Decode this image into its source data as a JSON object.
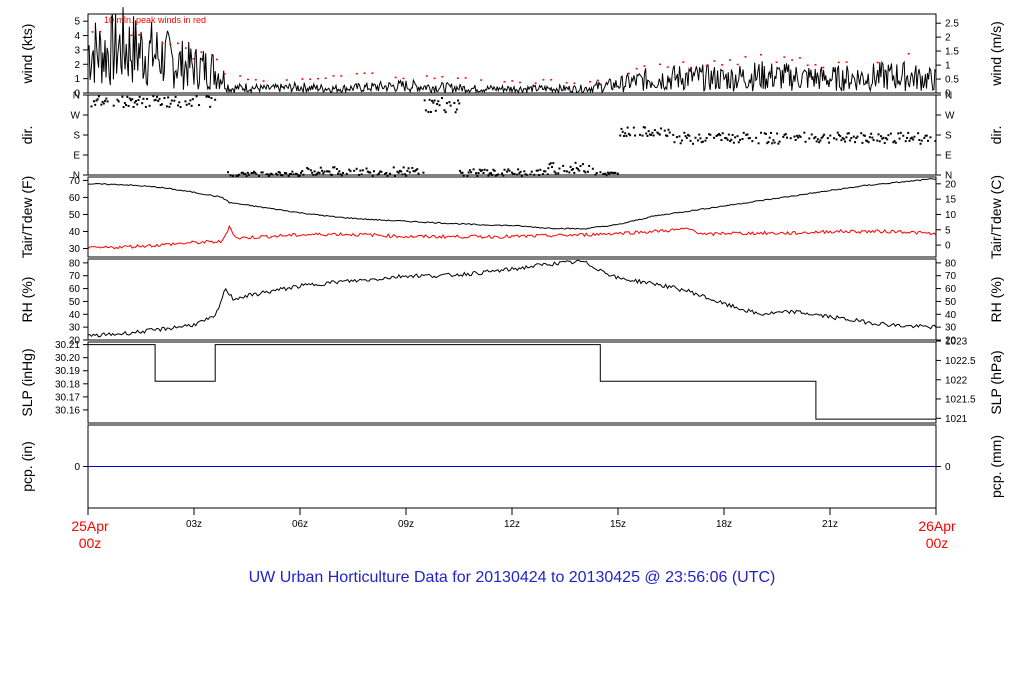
{
  "chart_title": "UW Urban Horticulture Data for 20130424  to  20130425 @ 23:56:06  (UTC)",
  "colors": {
    "black": "#000000",
    "red": "#ff0000",
    "blue": "#0000cc",
    "title": "#2222cc"
  },
  "time_axis": {
    "start_label": [
      "25Apr",
      "00z"
    ],
    "end_label": [
      "26Apr",
      "00z"
    ],
    "ticks": [
      {
        "hour": 3,
        "label": "03z"
      },
      {
        "hour": 6,
        "label": "06z"
      },
      {
        "hour": 9,
        "label": "09z"
      },
      {
        "hour": 12,
        "label": "12z"
      },
      {
        "hour": 15,
        "label": "15z"
      },
      {
        "hour": 18,
        "label": "18z"
      },
      {
        "hour": 21,
        "label": "21z"
      }
    ],
    "range_hours": [
      0,
      24
    ]
  },
  "chart_data": [
    {
      "type": "line",
      "id": "wind",
      "ylabel": "wind (kts)",
      "ylabel_right": "wind (m/s)",
      "annotation": "10 min. peak winds in red",
      "ylim": [
        0,
        5.5
      ],
      "left_ticks": [
        {
          "v": 0,
          "t": "0"
        },
        {
          "v": 1,
          "t": "1"
        },
        {
          "v": 2,
          "t": "2"
        },
        {
          "v": 3,
          "t": "3"
        },
        {
          "v": 4,
          "t": "4"
        },
        {
          "v": 5,
          "t": "5"
        }
      ],
      "right_ticks": [
        {
          "v": 0,
          "t": "0"
        },
        {
          "v": 0.97,
          "t": "0.5"
        },
        {
          "v": 1.94,
          "t": "1"
        },
        {
          "v": 2.92,
          "t": "1.5"
        },
        {
          "v": 3.89,
          "t": "2"
        },
        {
          "v": 4.86,
          "t": "2.5"
        }
      ],
      "series": [
        {
          "color": "#000000",
          "style": "line",
          "points": [
            [
              0,
              3.0
            ],
            [
              0.5,
              2.8
            ],
            [
              1,
              3.2
            ],
            [
              1.5,
              2.9
            ],
            [
              2,
              2.6
            ],
            [
              2.5,
              2.1
            ],
            [
              3,
              1.8
            ],
            [
              3.5,
              1.7
            ],
            [
              3.8,
              1.2
            ],
            [
              4,
              0.3
            ],
            [
              4.5,
              0.4
            ],
            [
              5,
              0.3
            ],
            [
              6,
              0.4
            ],
            [
              7,
              0.3
            ],
            [
              8,
              0.4
            ],
            [
              9,
              0.5
            ],
            [
              10,
              0.4
            ],
            [
              11,
              0.3
            ],
            [
              12,
              0.3
            ],
            [
              13,
              0.3
            ],
            [
              14,
              0.3
            ],
            [
              15,
              0.6
            ],
            [
              15.5,
              0.8
            ],
            [
              16,
              1.0
            ],
            [
              17,
              1.1
            ],
            [
              18,
              1.0
            ],
            [
              19,
              1.2
            ],
            [
              20,
              1.1
            ],
            [
              21,
              1.0
            ],
            [
              22,
              1.1
            ],
            [
              23,
              1.2
            ],
            [
              24,
              0.9
            ]
          ]
        },
        {
          "color": "#ff0000",
          "style": "dots",
          "points": [
            [
              0,
              4.5
            ],
            [
              0.5,
              4.3
            ],
            [
              1,
              4.8
            ],
            [
              1.5,
              4.2
            ],
            [
              2,
              3.6
            ],
            [
              2.5,
              3.2
            ],
            [
              3,
              2.6
            ],
            [
              3.5,
              2.4
            ],
            [
              4,
              1.2
            ],
            [
              5,
              1.0
            ],
            [
              6,
              1.2
            ],
            [
              7,
              1.1
            ],
            [
              8,
              1.3
            ],
            [
              9,
              1.2
            ],
            [
              10,
              1.1
            ],
            [
              11,
              0.9
            ],
            [
              12,
              0.8
            ],
            [
              13,
              0.9
            ],
            [
              14,
              0.8
            ],
            [
              15,
              1.4
            ],
            [
              16,
              1.8
            ],
            [
              17,
              2.0
            ],
            [
              18,
              2.2
            ],
            [
              19,
              2.5
            ],
            [
              20,
              2.3
            ],
            [
              21,
              2.1
            ],
            [
              22,
              2.2
            ],
            [
              23,
              2.6
            ],
            [
              24,
              1.8
            ]
          ]
        }
      ]
    },
    {
      "type": "scatter",
      "id": "dir",
      "ylabel": "dir.",
      "ylabel_right": "dir.",
      "ylim": [
        0,
        360
      ],
      "left_ticks": [
        {
          "v": 0,
          "t": "N"
        },
        {
          "v": 90,
          "t": "E"
        },
        {
          "v": 180,
          "t": "S"
        },
        {
          "v": 270,
          "t": "W"
        },
        {
          "v": 360,
          "t": "N"
        }
      ],
      "right_ticks": [
        {
          "v": 0,
          "t": "N"
        },
        {
          "v": 90,
          "t": "E"
        },
        {
          "v": 180,
          "t": "S"
        },
        {
          "v": 270,
          "t": "W"
        },
        {
          "v": 360,
          "t": "N"
        }
      ],
      "segments": [
        {
          "from": 0,
          "to": 3.6,
          "center": 335,
          "spread": 25
        },
        {
          "from": 3.9,
          "to": 6.0,
          "center": 10,
          "spread": 10
        },
        {
          "from": 6.0,
          "to": 9.5,
          "center": 20,
          "spread": 20
        },
        {
          "from": 9.5,
          "to": 10.5,
          "center": 320,
          "spread": 35
        },
        {
          "from": 10.5,
          "to": 13.0,
          "center": 15,
          "spread": 15
        },
        {
          "from": 13.0,
          "to": 14.3,
          "center": 35,
          "spread": 25
        },
        {
          "from": 14.3,
          "to": 15.0,
          "center": 10,
          "spread": 8
        },
        {
          "from": 15.0,
          "to": 16.5,
          "center": 200,
          "spread": 20
        },
        {
          "from": 16.5,
          "to": 24.0,
          "center": 170,
          "spread": 25
        }
      ]
    },
    {
      "type": "line",
      "id": "temp",
      "ylabel": "Tair/Tdew (F)",
      "ylabel_right": "Tair/Tdew (C)",
      "ylim": [
        25,
        72
      ],
      "left_ticks": [
        {
          "v": 30,
          "t": "30"
        },
        {
          "v": 40,
          "t": "40"
        },
        {
          "v": 50,
          "t": "50"
        },
        {
          "v": 60,
          "t": "60"
        },
        {
          "v": 70,
          "t": "70"
        }
      ],
      "right_ticks": [
        {
          "v": 32,
          "t": "0"
        },
        {
          "v": 41,
          "t": "5"
        },
        {
          "v": 50,
          "t": "10"
        },
        {
          "v": 59,
          "t": "15"
        },
        {
          "v": 68,
          "t": "20"
        }
      ],
      "series": [
        {
          "name": "Tair",
          "color": "#000000",
          "points": [
            [
              0,
              68
            ],
            [
              1,
              67.5
            ],
            [
              2,
              66
            ],
            [
              3,
              63
            ],
            [
              3.8,
              60
            ],
            [
              4,
              57
            ],
            [
              5,
              54
            ],
            [
              6,
              51
            ],
            [
              7,
              48.5
            ],
            [
              8,
              47
            ],
            [
              9,
              46
            ],
            [
              10,
              45
            ],
            [
              11,
              44
            ],
            [
              12,
              43.5
            ],
            [
              13,
              42
            ],
            [
              14,
              41.5
            ],
            [
              15,
              44
            ],
            [
              16,
              49
            ],
            [
              17,
              52
            ],
            [
              18,
              55
            ],
            [
              19,
              58
            ],
            [
              20,
              61
            ],
            [
              21,
              64
            ],
            [
              22,
              67
            ],
            [
              23,
              69
            ],
            [
              24,
              71
            ]
          ]
        },
        {
          "name": "Tdew",
          "color": "#ff0000",
          "points": [
            [
              0,
              30
            ],
            [
              1,
              31
            ],
            [
              2,
              32
            ],
            [
              3,
              33.5
            ],
            [
              3.8,
              34
            ],
            [
              4,
              43
            ],
            [
              4.2,
              36
            ],
            [
              5,
              37
            ],
            [
              6,
              38
            ],
            [
              7,
              38.5
            ],
            [
              8,
              38
            ],
            [
              9,
              37
            ],
            [
              10,
              37
            ],
            [
              11,
              37
            ],
            [
              12,
              37
            ],
            [
              13,
              37.5
            ],
            [
              14,
              38
            ],
            [
              15,
              39
            ],
            [
              16,
              40
            ],
            [
              17,
              41.5
            ],
            [
              17.5,
              38
            ],
            [
              18,
              39
            ],
            [
              19,
              39
            ],
            [
              20,
              39
            ],
            [
              21,
              40
            ],
            [
              22,
              40
            ],
            [
              23,
              40
            ],
            [
              24,
              38.5
            ]
          ]
        }
      ]
    },
    {
      "type": "line",
      "id": "rh",
      "ylabel": "RH (%)",
      "ylabel_right": "RH (%)",
      "ylim": [
        20,
        83
      ],
      "left_ticks": [
        {
          "v": 20,
          "t": "20"
        },
        {
          "v": 30,
          "t": "30"
        },
        {
          "v": 40,
          "t": "40"
        },
        {
          "v": 50,
          "t": "50"
        },
        {
          "v": 60,
          "t": "60"
        },
        {
          "v": 70,
          "t": "70"
        },
        {
          "v": 80,
          "t": "80"
        }
      ],
      "right_ticks": [
        {
          "v": 20,
          "t": "20"
        },
        {
          "v": 30,
          "t": "30"
        },
        {
          "v": 40,
          "t": "40"
        },
        {
          "v": 50,
          "t": "50"
        },
        {
          "v": 60,
          "t": "60"
        },
        {
          "v": 70,
          "t": "70"
        },
        {
          "v": 80,
          "t": "80"
        }
      ],
      "series": [
        {
          "name": "RH",
          "color": "#000000",
          "points": [
            [
              0,
              23
            ],
            [
              1,
              25
            ],
            [
              2,
              28
            ],
            [
              3,
              32
            ],
            [
              3.6,
              38
            ],
            [
              3.9,
              60
            ],
            [
              4.1,
              52
            ],
            [
              5,
              57
            ],
            [
              6,
              62
            ],
            [
              7,
              65
            ],
            [
              8,
              67
            ],
            [
              9,
              70
            ],
            [
              10,
              70
            ],
            [
              11,
              72
            ],
            [
              12,
              75
            ],
            [
              13,
              79
            ],
            [
              14,
              81
            ],
            [
              15,
              68
            ],
            [
              16,
              64
            ],
            [
              17,
              58
            ],
            [
              18,
              48
            ],
            [
              19,
              40
            ],
            [
              20,
              42
            ],
            [
              21,
              38
            ],
            [
              22,
              34
            ],
            [
              23,
              31
            ],
            [
              24,
              30
            ]
          ]
        }
      ]
    },
    {
      "type": "line",
      "id": "slp",
      "ylabel": "SLP (inHg)",
      "ylabel_right": "SLP (hPa)",
      "ylim": [
        30.15,
        30.212
      ],
      "left_ticks": [
        {
          "v": 30.16,
          "t": "30.16"
        },
        {
          "v": 30.17,
          "t": "30.17"
        },
        {
          "v": 30.18,
          "t": "30.18"
        },
        {
          "v": 30.19,
          "t": "30.19"
        },
        {
          "v": 30.2,
          "t": "30.20"
        },
        {
          "v": 30.21,
          "t": "30.21"
        }
      ],
      "right_ticks": [
        {
          "v": 30.1536,
          "t": "1021"
        },
        {
          "v": 30.1684,
          "t": "1021.5"
        },
        {
          "v": 30.1831,
          "t": "1022"
        },
        {
          "v": 30.1979,
          "t": "1022.5"
        },
        {
          "v": 30.2127,
          "t": "1023"
        }
      ],
      "series": [
        {
          "name": "SLP",
          "color": "#000000",
          "step": true,
          "points": [
            [
              0,
              30.21
            ],
            [
              1.9,
              30.21
            ],
            [
              1.9,
              30.182
            ],
            [
              3.6,
              30.182
            ],
            [
              3.6,
              30.21
            ],
            [
              14.5,
              30.21
            ],
            [
              14.5,
              30.182
            ],
            [
              20.6,
              30.182
            ],
            [
              20.6,
              30.153
            ],
            [
              24,
              30.153
            ]
          ]
        }
      ]
    },
    {
      "type": "line",
      "id": "pcp",
      "ylabel": "pcp. (in)",
      "ylabel_right": "pcp. (mm)",
      "ylim": [
        -1,
        1
      ],
      "left_ticks": [
        {
          "v": 0,
          "t": "0"
        }
      ],
      "right_ticks": [
        {
          "v": 0,
          "t": "0"
        }
      ],
      "series": [
        {
          "name": "pcp",
          "color": "#0000cc",
          "points": [
            [
              0,
              0
            ],
            [
              24,
              0
            ]
          ]
        }
      ]
    }
  ]
}
